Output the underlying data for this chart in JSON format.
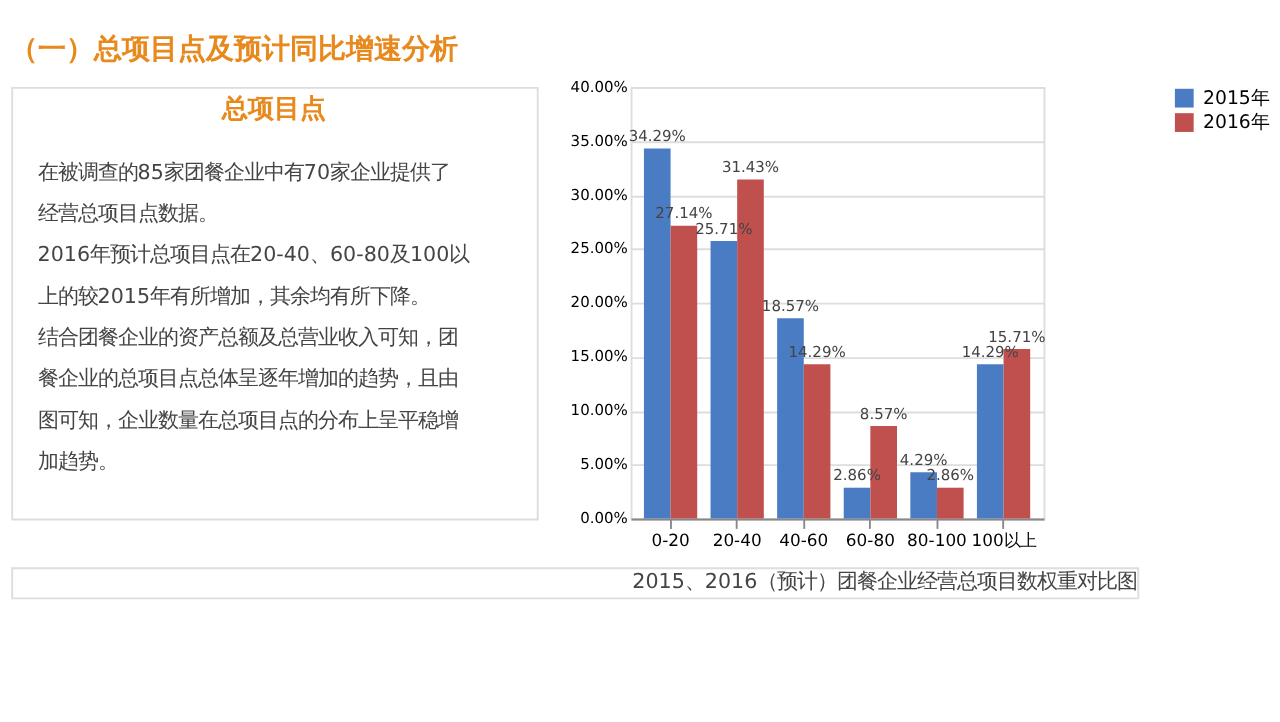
{
  "chart_data": {
    "type": "bar",
    "title": "（一）总项目点及预计同比增速分析",
    "subtitle": "总项目点",
    "annotations": [
      "在被调查的85家团餐企业中有70家企业提供了经营总项目点数据。",
      "2016年预计总项目点在20-40、60-80及100以上的较2015年有所增加，其余均有所下降。",
      "结合团餐企业的资产总额及总营业收入可知，团餐企业的总项目点总体呈逐年增加的趋势，且由图可知，企业数量在总项目点的分布上呈平稳增加趋势。",
      "2015、2016（预计）团餐企业经营总项目数权重对比图"
    ],
    "categories": [
      "0-20",
      "20-40",
      "40-60",
      "60-80",
      "80-100",
      "100以上"
    ],
    "series": [
      {
        "name": "2015年",
        "color": "#4a7cc4",
        "values": [
          34.29,
          25.71,
          18.57,
          2.86,
          4.29,
          14.29
        ],
        "value_labels": [
          "34.29%",
          "25.71%",
          "18.57%",
          "2.86%",
          "4.29%",
          "14.29%"
        ]
      },
      {
        "name": "2016年",
        "color": "#c0504d",
        "values": [
          27.14,
          31.43,
          14.29,
          8.57,
          2.86,
          15.71
        ],
        "value_labels": [
          "27.14%",
          "31.43%",
          "14.29%",
          "8.57%",
          "2.86%",
          "15.71%"
        ]
      }
    ],
    "ylim": [
      0,
      40
    ],
    "yticks": [
      {
        "value": 0,
        "label": "0.00%"
      },
      {
        "value": 5,
        "label": "5.00%"
      },
      {
        "value": 10,
        "label": "10.00%"
      },
      {
        "value": 15,
        "label": "15.00%"
      },
      {
        "value": 20,
        "label": "20.00%"
      },
      {
        "value": 25,
        "label": "25.00%"
      },
      {
        "value": 30,
        "label": "30.00%"
      },
      {
        "value": 35,
        "label": "35.00%"
      },
      {
        "value": 40,
        "label": "40.00%"
      }
    ],
    "grid": "y",
    "legend": "right"
  }
}
